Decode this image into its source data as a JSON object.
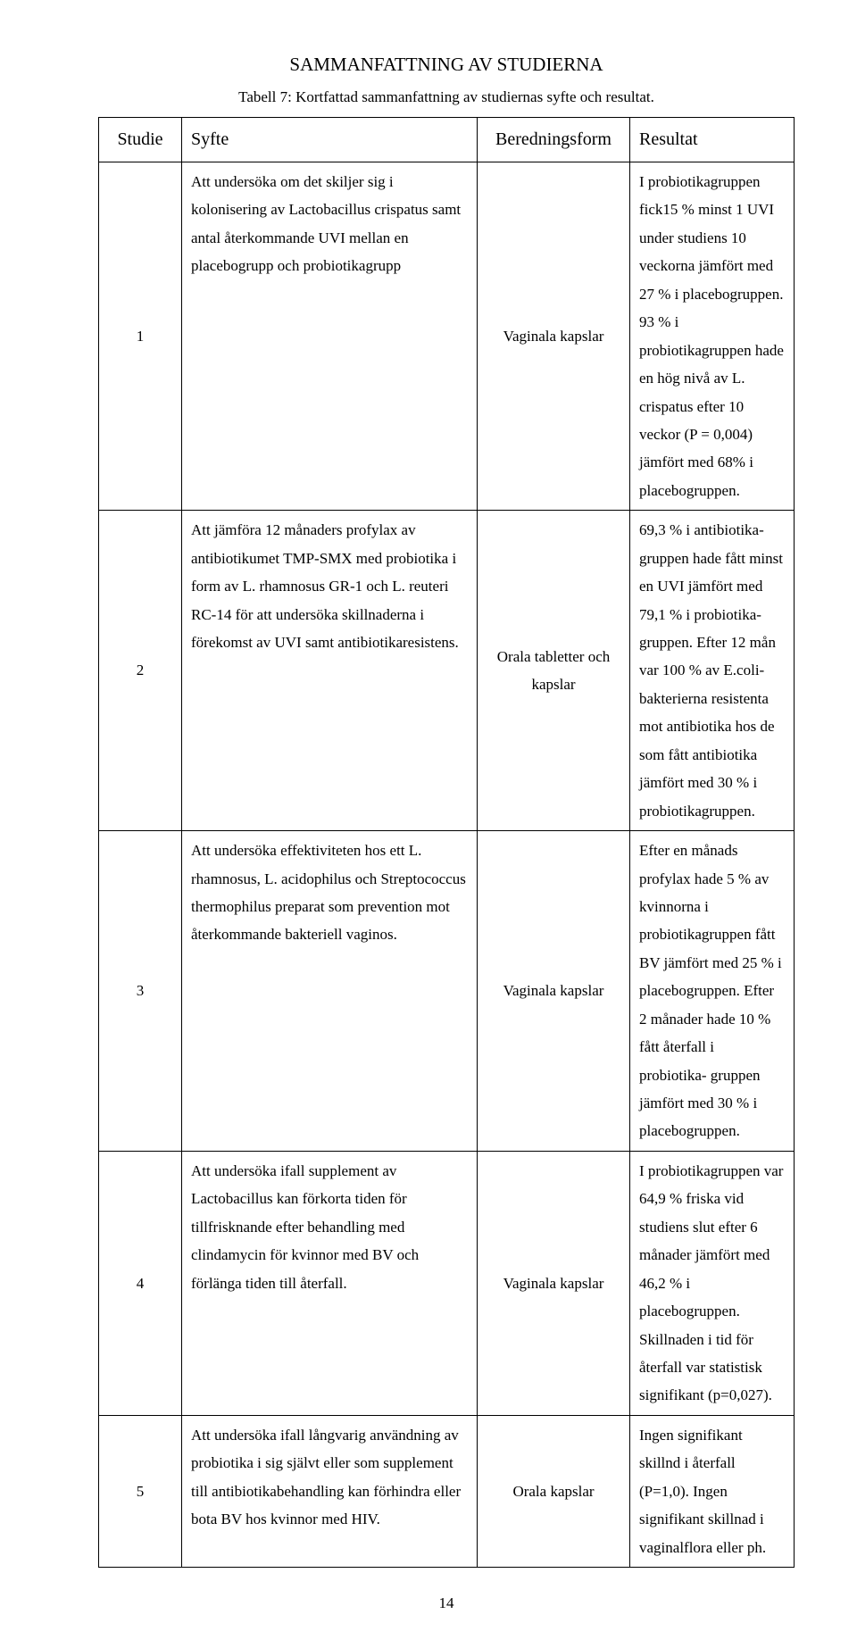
{
  "doc_title": "SAMMANFATTNING AV STUDIERNA",
  "table_caption": "Tabell 7: Kortfattad sammanfattning av studiernas syfte och resultat.",
  "headers": {
    "studie": "Studie",
    "syfte": "Syfte",
    "form": "Beredningsform",
    "result": "Resultat"
  },
  "rows": [
    {
      "n": "1",
      "syfte": "Att undersöka om det skiljer sig i kolonisering av Lactobacillus crispatus  samt antal återkommande UVI mellan en placebogrupp och probiotikagrupp",
      "form": "Vaginala kapslar",
      "result": "I probiotikagruppen fick15 % minst 1 UVI under studiens 10 veckorna jämfört med 27 % i placebogruppen. 93 % i probiotikagruppen hade en hög nivå av L. crispatus efter 10 veckor (P = 0,004) jämfört med 68% i placebogruppen."
    },
    {
      "n": "2",
      "syfte": "Att jämföra 12 månaders profylax av antibiotikumet TMP-SMX med probiotika i form av L. rhamnosus GR-1 och L. reuteri RC-14 för att undersöka skillnaderna i förekomst av UVI samt antibiotikaresistens.",
      "form": "Orala tabletter och kapslar",
      "result": "69,3 % i antibiotika- gruppen hade fått minst en UVI jämfört med 79,1 % i probiotika-gruppen. Efter 12 mån var 100 % av E.coli-bakterierna resistenta mot antibiotika hos de som fått antibiotika jämfört med 30 % i probiotikagruppen."
    },
    {
      "n": "3",
      "syfte": "Att undersöka effektiviteten hos ett  L. rhamnosus, L. acidophilus och Streptococcus thermophilus preparat som prevention mot återkommande bakteriell vaginos.",
      "form": "Vaginala kapslar",
      "result": "Efter en månads profylax hade 5 % av kvinnorna i probiotikagruppen fått BV jämfört med 25 % i placebogruppen. Efter 2 månader hade 10 % fått återfall i probiotika- gruppen jämfört med 30 % i placebogruppen."
    },
    {
      "n": "4",
      "syfte": "Att undersöka ifall supplement av Lactobacillus kan förkorta tiden för tillfrisknande efter behandling med clindamycin för kvinnor med BV och förlänga tiden till återfall.",
      "form": "Vaginala kapslar",
      "result": "I probiotikagruppen var 64,9 % friska vid studiens slut efter 6 månader jämfört med 46,2 % i placebogruppen. Skillnaden i tid för återfall var statistisk signifikant (p=0,027)."
    },
    {
      "n": "5",
      "syfte": "Att undersöka ifall långvarig användning av probiotika i sig självt eller  som supplement till antibiotikabehandling kan förhindra eller bota BV hos kvinnor med HIV.",
      "form": "Orala kapslar",
      "result": "Ingen signifikant skillnd i återfall (P=1,0). Ingen signifikant skillnad i vaginalflora eller ph."
    }
  ],
  "page_number": "14"
}
